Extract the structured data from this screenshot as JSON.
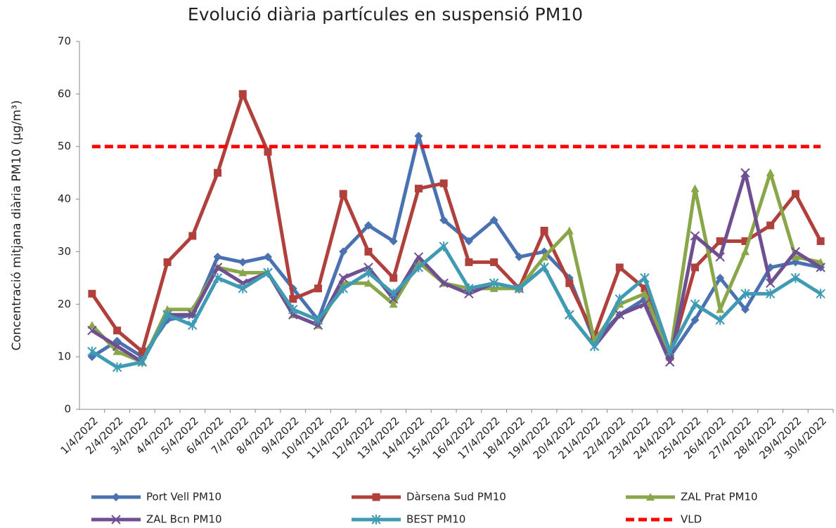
{
  "chart_data": {
    "type": "line",
    "title": "Evolució diària partícules en suspensió PM10",
    "y_label": "Concentració mitjana diària PM10 (µg/m³)",
    "categories": [
      "1/4/2022",
      "2/4/2022",
      "3/4/2022",
      "4/4/2022",
      "5/4/2022",
      "6/4/2022",
      "7/4/2022",
      "8/4/2022",
      "9/4/2022",
      "10/4/2022",
      "11/4/2022",
      "12/4/2022",
      "13/4/2022",
      "14/4/2022",
      "15/4/2022",
      "16/4/2022",
      "17/4/2022",
      "18/4/2022",
      "19/4/2022",
      "20/4/2022",
      "21/4/2022",
      "22/4/2022",
      "23/4/2022",
      "24/4/2022",
      "25/4/2022",
      "26/4/2022",
      "27/4/2022",
      "28/4/2022",
      "29/4/2022",
      "30/4/2022"
    ],
    "series": [
      {
        "name": "Port Vell PM10",
        "color": "#4a72b0",
        "marker": "diamond",
        "values": [
          10,
          13,
          10,
          17,
          18,
          29,
          28,
          29,
          23,
          17,
          30,
          35,
          32,
          52,
          36,
          32,
          36,
          29,
          30,
          25,
          13,
          18,
          21,
          10,
          17,
          25,
          19,
          27,
          28,
          27
        ]
      },
      {
        "name": "Dàrsena Sud PM10",
        "color": "#b0403c",
        "marker": "square",
        "values": [
          22,
          15,
          11,
          28,
          33,
          45,
          60,
          49,
          21,
          23,
          41,
          30,
          25,
          42,
          43,
          28,
          28,
          23,
          34,
          24,
          14,
          27,
          23,
          10,
          27,
          32,
          32,
          35,
          41,
          32
        ]
      },
      {
        "name": "ZAL Prat PM10",
        "color": "#8aa64a",
        "marker": "triangle",
        "values": [
          16,
          11,
          9,
          19,
          19,
          27,
          26,
          26,
          18,
          16,
          24,
          24,
          20,
          28,
          24,
          23,
          23,
          23,
          29,
          34,
          13,
          20,
          22,
          10,
          42,
          19,
          30,
          45,
          29,
          28
        ]
      },
      {
        "name": "ZAL Bcn PM10",
        "color": "#6f4f91",
        "marker": "x",
        "values": [
          15,
          12,
          9,
          18,
          18,
          27,
          24,
          26,
          18,
          16,
          25,
          27,
          21,
          29,
          24,
          22,
          24,
          23,
          27,
          18,
          12,
          18,
          20,
          9,
          33,
          29,
          45,
          24,
          30,
          27
        ]
      },
      {
        "name": "BEST PM10",
        "color": "#3f9bb4",
        "marker": "star",
        "values": [
          11,
          8,
          9,
          18,
          16,
          25,
          23,
          26,
          19,
          17,
          23,
          26,
          22,
          27,
          31,
          23,
          24,
          23,
          27,
          18,
          12,
          21,
          25,
          11,
          20,
          17,
          22,
          22,
          25,
          22
        ]
      },
      {
        "name": "VLD",
        "color": "#ff0000",
        "marker": "none",
        "dashed": true,
        "values": [
          50,
          50,
          50,
          50,
          50,
          50,
          50,
          50,
          50,
          50,
          50,
          50,
          50,
          50,
          50,
          50,
          50,
          50,
          50,
          50,
          50,
          50,
          50,
          50,
          50,
          50,
          50,
          50,
          50,
          50
        ]
      }
    ],
    "ylim": [
      0,
      70
    ],
    "yticks": [
      0,
      10,
      20,
      30,
      40,
      50,
      60,
      70
    ],
    "grid": false
  }
}
